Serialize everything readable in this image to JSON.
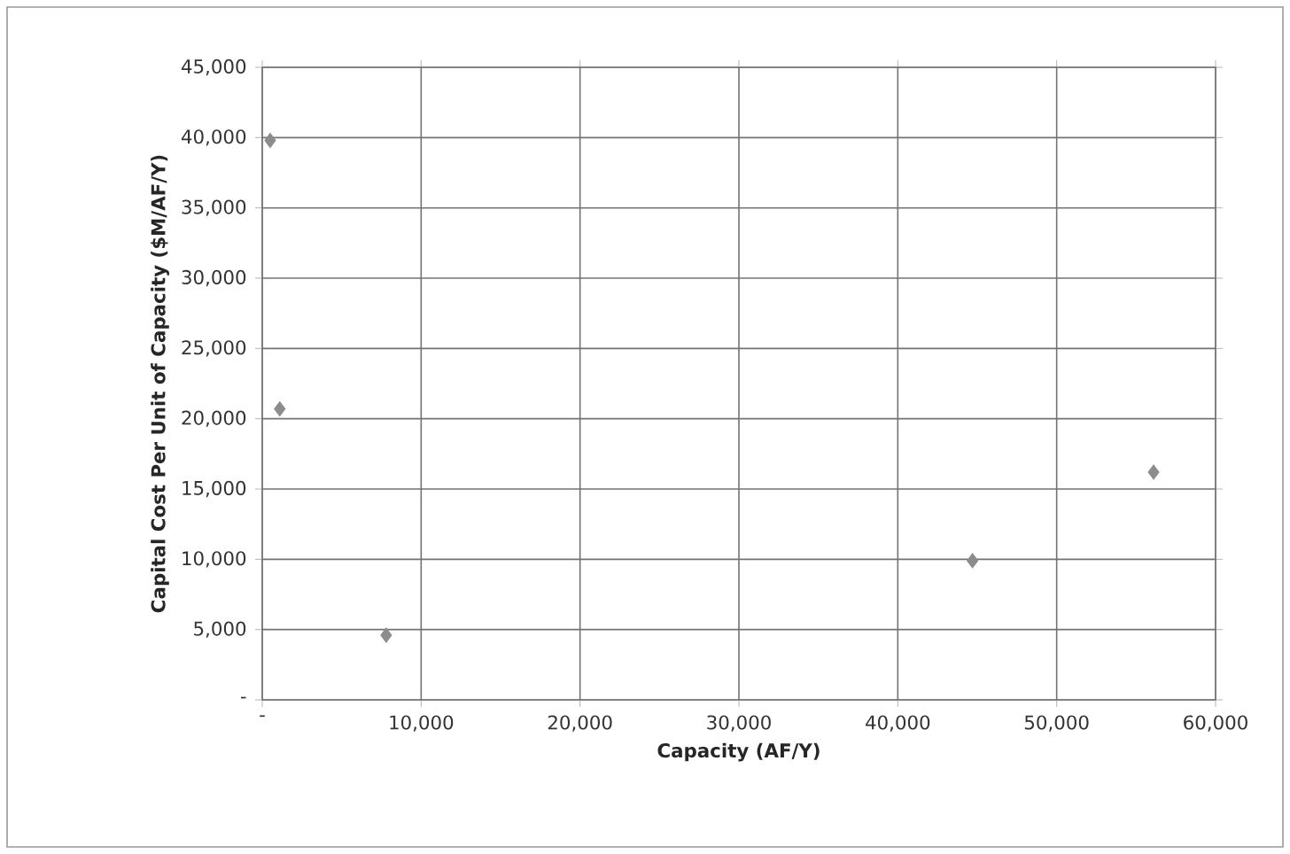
{
  "chart_data": {
    "type": "scatter",
    "xlabel": "Capacity (AF/Y)",
    "ylabel": "Capital Cost Per Unit of Capacity ($M/AF/Y)",
    "x": [
      500,
      1100,
      7800,
      44700,
      56100
    ],
    "values": [
      39800,
      20700,
      4600,
      9900,
      16200
    ],
    "color": "#8c8c8c",
    "marker": "diamond",
    "grid": true,
    "xlim": [
      0,
      60000
    ],
    "ylim": [
      0,
      45000
    ],
    "xticks": [
      {
        "value": 0,
        "label": "-"
      },
      {
        "value": 10000,
        "label": "10,000"
      },
      {
        "value": 20000,
        "label": "20,000"
      },
      {
        "value": 30000,
        "label": "30,000"
      },
      {
        "value": 40000,
        "label": "40,000"
      },
      {
        "value": 50000,
        "label": "50,000"
      },
      {
        "value": 60000,
        "label": "60,000"
      }
    ],
    "yticks": [
      {
        "value": 0,
        "label": "-"
      },
      {
        "value": 5000,
        "label": "5,000"
      },
      {
        "value": 10000,
        "label": "10,000"
      },
      {
        "value": 15000,
        "label": "15,000"
      },
      {
        "value": 20000,
        "label": "20,000"
      },
      {
        "value": 25000,
        "label": "25,000"
      },
      {
        "value": 30000,
        "label": "30,000"
      },
      {
        "value": 35000,
        "label": "35,000"
      },
      {
        "value": 40000,
        "label": "40,000"
      },
      {
        "value": 45000,
        "label": "45,000"
      }
    ]
  }
}
